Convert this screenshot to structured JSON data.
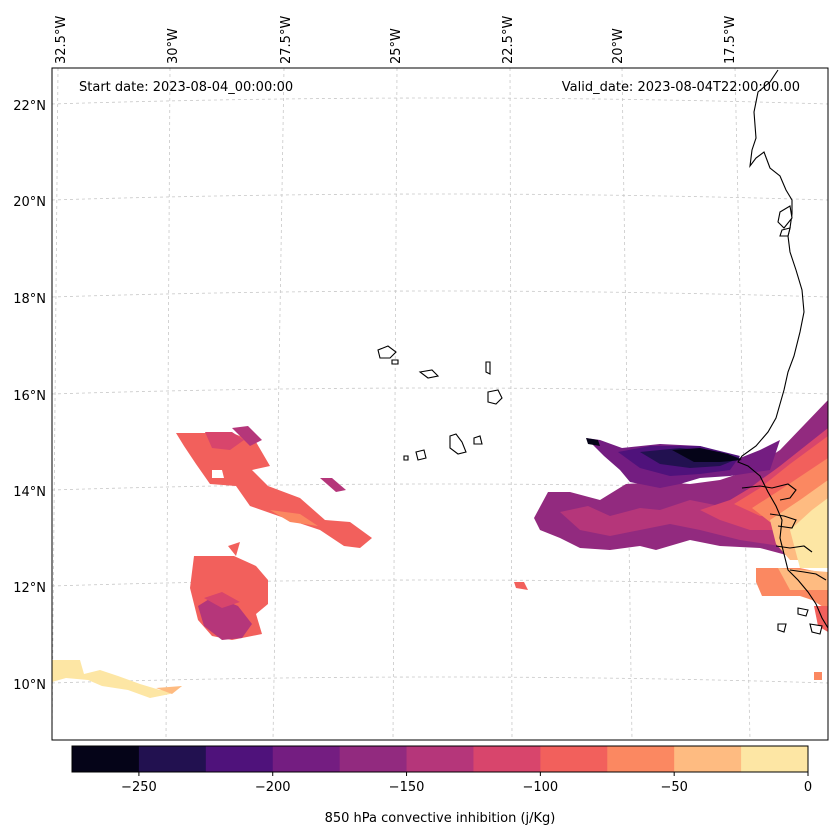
{
  "header": {
    "start_date": "Start date: 2023-08-04_00:00:00",
    "valid_date": "Valid_date: 2023-08-04T22:00:00.00"
  },
  "axes": {
    "lon_labels": [
      "32.5°W",
      "30°W",
      "27.5°W",
      "25°W",
      "22.5°W",
      "20°W",
      "17.5°W"
    ],
    "lat_labels": [
      "22°N",
      "20°N",
      "18°N",
      "16°N",
      "14°N",
      "12°N",
      "10°N"
    ]
  },
  "colorbar": {
    "label": "850 hPa convective inhibition (j/Kg)",
    "ticks": [
      "−250",
      "−200",
      "−150",
      "−100",
      "−50",
      "0"
    ],
    "levels": [
      -275,
      -250,
      -225,
      -200,
      -175,
      -150,
      -125,
      -100,
      -75,
      -50,
      -25,
      0
    ],
    "colors": [
      "#050418",
      "#221150",
      "#4f127b",
      "#741d81",
      "#922a7f",
      "#b5367a",
      "#d8456c",
      "#f2605c",
      "#fb8861",
      "#febb81",
      "#fde6a4"
    ]
  }
}
